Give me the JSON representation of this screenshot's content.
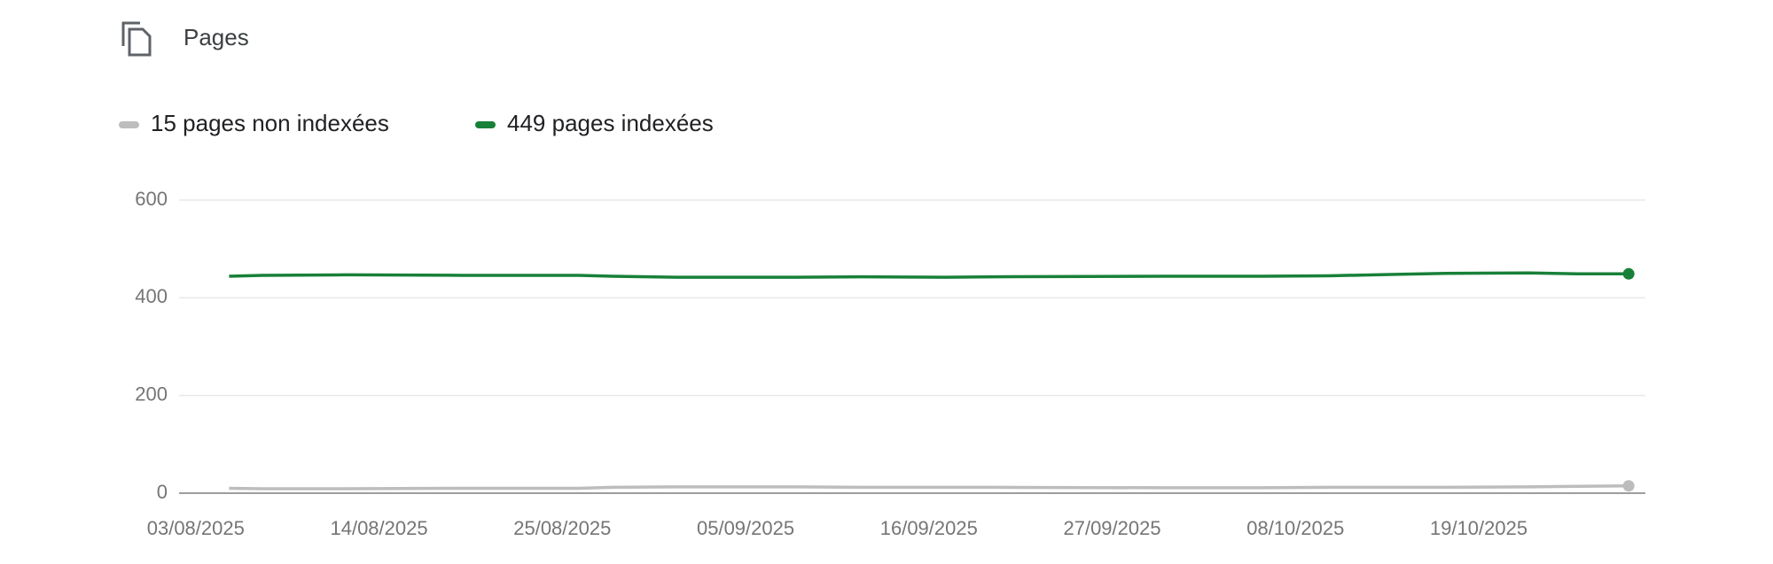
{
  "title": "Pages",
  "chart_data": {
    "type": "line",
    "x": [
      "05/08/2025",
      "07/08/2025",
      "12/08/2025",
      "19/08/2025",
      "26/08/2025",
      "28/08/2025",
      "01/09/2025",
      "08/09/2025",
      "12/09/2025",
      "17/09/2025",
      "20/09/2025",
      "30/09/2025",
      "06/10/2025",
      "10/10/2025",
      "14/10/2025",
      "17/10/2025",
      "22/10/2025",
      "25/10/2025",
      "28/10/2025"
    ],
    "series": [
      {
        "name": "15 pages non indexées",
        "color": "#bdbdbd",
        "values": [
          10,
          9,
          9,
          10,
          10,
          12,
          13,
          13,
          12,
          12,
          12,
          11,
          11,
          12,
          12,
          12,
          13,
          14,
          15
        ]
      },
      {
        "name": "449 pages indexées",
        "color": "#188038",
        "values": [
          444,
          446,
          447,
          446,
          446,
          444,
          442,
          442,
          443,
          442,
          443,
          444,
          444,
          445,
          448,
          450,
          451,
          449,
          449
        ]
      }
    ],
    "xlim": [
      "02/08/2025",
      "29/10/2025"
    ],
    "xticks": [
      "03/08/2025",
      "14/08/2025",
      "25/08/2025",
      "05/09/2025",
      "16/09/2025",
      "27/09/2025",
      "08/10/2025",
      "19/10/2025"
    ],
    "ylim": [
      0,
      600
    ],
    "yticks": [
      0,
      200,
      400,
      600
    ],
    "grid": true
  }
}
